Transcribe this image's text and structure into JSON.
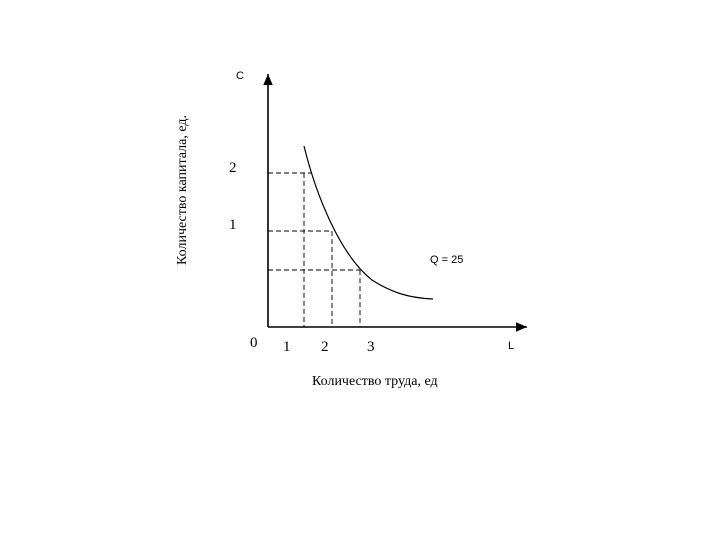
{
  "diagram": {
    "y_axis_letter": "C",
    "x_axis_letter": "L",
    "y_axis_title": "Количество капитала, ед.",
    "x_axis_title": "Количество труда, ед",
    "origin_label": "0",
    "x_tick_labels": [
      "1",
      "2",
      "3"
    ],
    "y_tick_labels": [
      "2",
      "1"
    ],
    "curve_label": "Q = 25",
    "colors": {
      "line": "#000000",
      "background": "#ffffff"
    }
  }
}
